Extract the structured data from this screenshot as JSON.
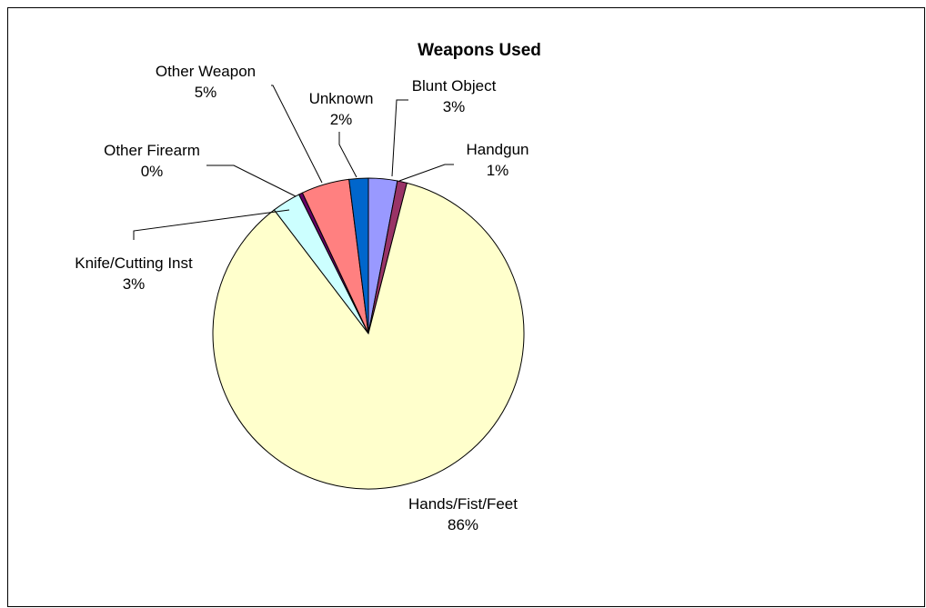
{
  "chart_data": {
    "type": "pie",
    "title": "Weapons Used",
    "slices": [
      {
        "name": "Blunt Object",
        "value": 3,
        "label": "3%",
        "color": "#9999FF"
      },
      {
        "name": "Handgun",
        "value": 1,
        "label": "1%",
        "color": "#993366"
      },
      {
        "name": "Hands/Fist/Feet",
        "value": 86,
        "label": "86%",
        "color": "#FFFFCC"
      },
      {
        "name": "Knife/Cutting Inst",
        "value": 3,
        "label": "3%",
        "color": "#CCFFFF"
      },
      {
        "name": "Other Firearm",
        "value": 0.4,
        "label": "0%",
        "color": "#660066"
      },
      {
        "name": "Other Weapon",
        "value": 5,
        "label": "5%",
        "color": "#FF8080"
      },
      {
        "name": "Unknown",
        "value": 2,
        "label": "2%",
        "color": "#0066CC"
      }
    ]
  }
}
